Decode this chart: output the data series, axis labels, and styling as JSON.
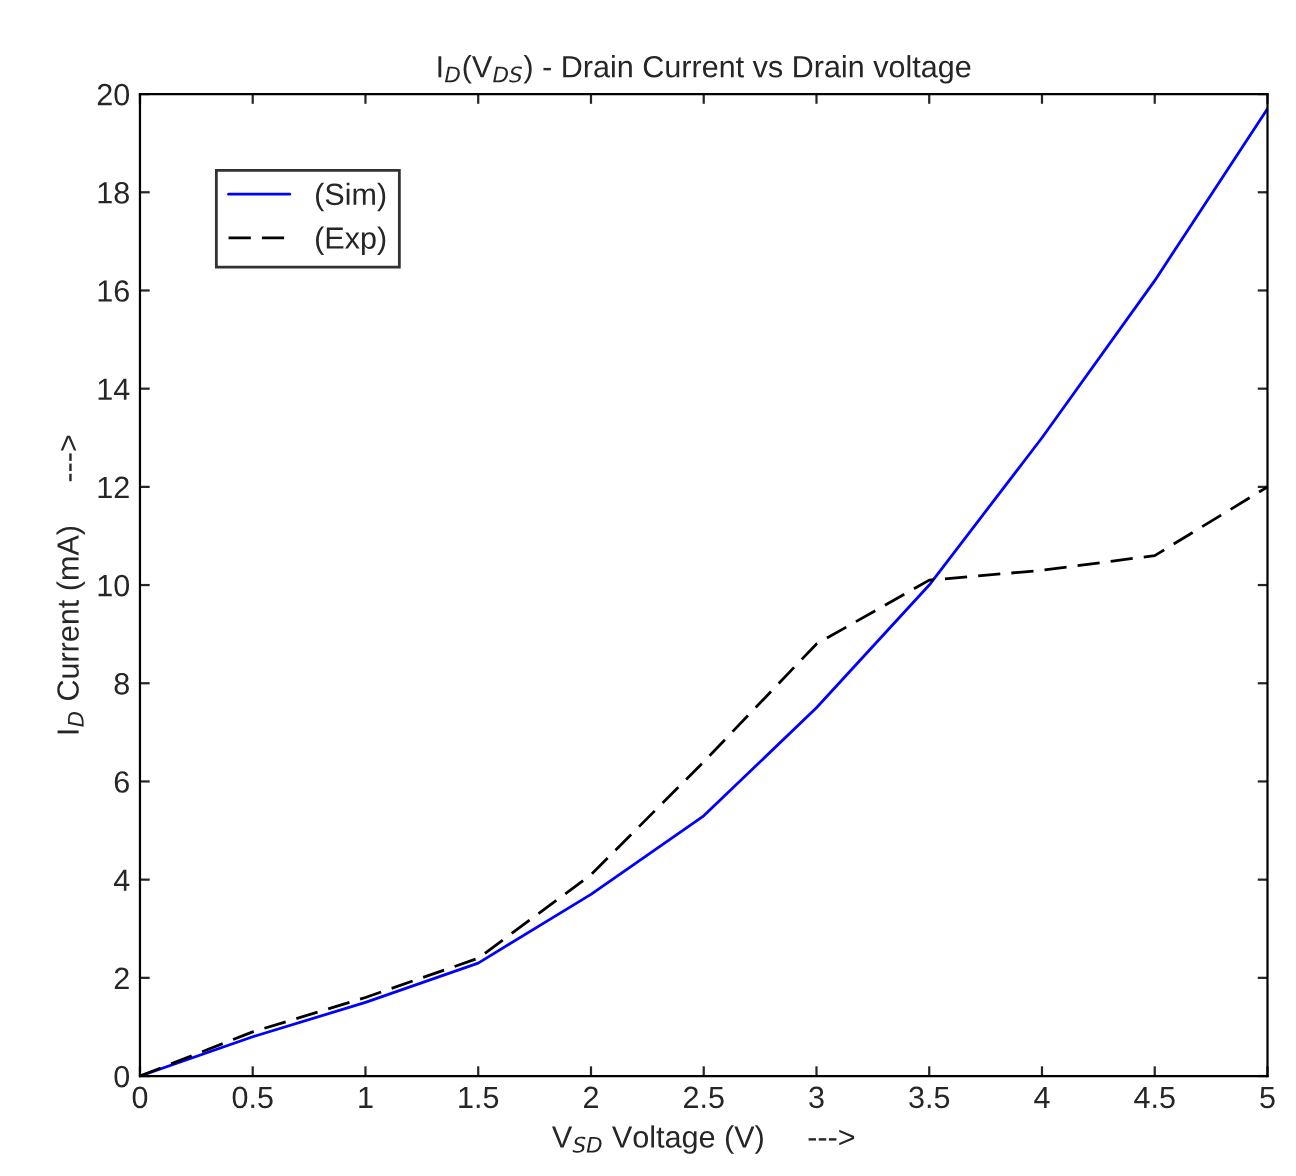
{
  "chart_data": {
    "type": "line",
    "title": "I$_{D}$(V$_{DS}$) - Drain Current vs Drain voltage",
    "xlabel": "V$_{SD}$ Voltage (V)     --->",
    "ylabel": "I$_{D}$ Current (mA)     --->",
    "x": [
      0,
      0.5,
      1,
      1.5,
      2,
      2.5,
      3,
      3.5,
      4,
      4.5,
      5
    ],
    "series": [
      {
        "name": "(Sim)",
        "color": "#0000ff",
        "line_style": "solid",
        "values": [
          0,
          0.8,
          1.5,
          2.3,
          3.7,
          5.3,
          7.5,
          10.0,
          13.0,
          16.2,
          19.7
        ]
      },
      {
        "name": "(Exp)",
        "color": "#000000",
        "line_style": "dashed",
        "values": [
          0,
          0.9,
          1.6,
          2.4,
          4.1,
          6.4,
          8.8,
          10.1,
          10.3,
          10.6,
          12.0
        ]
      }
    ],
    "xlim": [
      0,
      5
    ],
    "xticks": [
      0,
      0.5,
      1,
      1.5,
      2,
      2.5,
      3,
      3.5,
      4,
      4.5,
      5
    ],
    "ylim": [
      0,
      20
    ],
    "yticks": [
      0,
      2,
      4,
      6,
      8,
      10,
      12,
      14,
      16,
      18,
      20
    ],
    "legend": "top left",
    "grid": false,
    "marker": "none"
  }
}
